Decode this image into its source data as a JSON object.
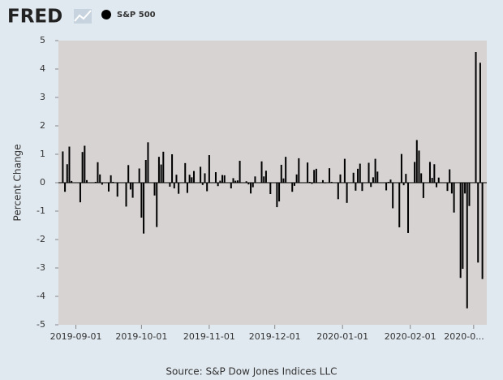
{
  "header": {
    "logo": "FRED"
  },
  "chart_data": {
    "type": "bar",
    "y_label": "Percent Change",
    "source": "Source: S&P Dow Jones Indices LLC",
    "xlim": [
      "2019-08-24",
      "2020-03-07"
    ],
    "xticks": [
      "2019-09-01",
      "2019-10-01",
      "2019-11-01",
      "2019-12-01",
      "2020-01-01",
      "2020-02-01",
      {
        "value": "2020-03-01",
        "label": "2020-0..."
      }
    ],
    "ylim": [
      -5,
      5
    ],
    "yticks": [
      -5,
      -4,
      -3,
      -2,
      -1,
      0,
      1,
      2,
      3,
      4,
      5
    ],
    "x": [
      "2019-08-26",
      "2019-08-27",
      "2019-08-28",
      "2019-08-29",
      "2019-08-30",
      "2019-09-03",
      "2019-09-04",
      "2019-09-05",
      "2019-09-06",
      "2019-09-09",
      "2019-09-10",
      "2019-09-11",
      "2019-09-12",
      "2019-09-13",
      "2019-09-16",
      "2019-09-17",
      "2019-09-18",
      "2019-09-19",
      "2019-09-20",
      "2019-09-23",
      "2019-09-24",
      "2019-09-25",
      "2019-09-26",
      "2019-09-27",
      "2019-09-30",
      "2019-10-01",
      "2019-10-02",
      "2019-10-03",
      "2019-10-04",
      "2019-10-07",
      "2019-10-08",
      "2019-10-09",
      "2019-10-10",
      "2019-10-11",
      "2019-10-14",
      "2019-10-15",
      "2019-10-16",
      "2019-10-17",
      "2019-10-18",
      "2019-10-21",
      "2019-10-22",
      "2019-10-23",
      "2019-10-24",
      "2019-10-25",
      "2019-10-28",
      "2019-10-29",
      "2019-10-30",
      "2019-10-31",
      "2019-11-01",
      "2019-11-04",
      "2019-11-05",
      "2019-11-06",
      "2019-11-07",
      "2019-11-08",
      "2019-11-11",
      "2019-11-12",
      "2019-11-13",
      "2019-11-14",
      "2019-11-15",
      "2019-11-18",
      "2019-11-19",
      "2019-11-20",
      "2019-11-21",
      "2019-11-22",
      "2019-11-25",
      "2019-11-26",
      "2019-11-27",
      "2019-11-29",
      "2019-12-02",
      "2019-12-03",
      "2019-12-04",
      "2019-12-05",
      "2019-12-06",
      "2019-12-09",
      "2019-12-10",
      "2019-12-11",
      "2019-12-12",
      "2019-12-13",
      "2019-12-16",
      "2019-12-17",
      "2019-12-18",
      "2019-12-19",
      "2019-12-20",
      "2019-12-23",
      "2019-12-24",
      "2019-12-26",
      "2019-12-27",
      "2019-12-30",
      "2019-12-31",
      "2020-01-02",
      "2020-01-03",
      "2020-01-06",
      "2020-01-07",
      "2020-01-08",
      "2020-01-09",
      "2020-01-10",
      "2020-01-13",
      "2020-01-14",
      "2020-01-15",
      "2020-01-16",
      "2020-01-17",
      "2020-01-21",
      "2020-01-22",
      "2020-01-23",
      "2020-01-24",
      "2020-01-27",
      "2020-01-28",
      "2020-01-29",
      "2020-01-30",
      "2020-01-31",
      "2020-02-03",
      "2020-02-04",
      "2020-02-05",
      "2020-02-06",
      "2020-02-07",
      "2020-02-10",
      "2020-02-11",
      "2020-02-12",
      "2020-02-13",
      "2020-02-14",
      "2020-02-18",
      "2020-02-19",
      "2020-02-20",
      "2020-02-21",
      "2020-02-24",
      "2020-02-25",
      "2020-02-26",
      "2020-02-27",
      "2020-02-28",
      "2020-03-02",
      "2020-03-03",
      "2020-03-04",
      "2020-03-05"
    ],
    "series": [
      {
        "name": "S&P 500",
        "color": "#000000",
        "values": [
          1.1,
          -0.32,
          0.65,
          1.27,
          0.06,
          -0.69,
          1.08,
          1.3,
          0.09,
          -0.01,
          0.03,
          0.72,
          0.29,
          -0.07,
          -0.31,
          0.26,
          0.03,
          0,
          -0.49,
          -0.01,
          -0.84,
          0.62,
          -0.24,
          -0.53,
          0.5,
          -1.23,
          -1.79,
          0.8,
          1.42,
          -0.45,
          -1.56,
          0.91,
          0.64,
          1.09,
          -0.14,
          1,
          -0.2,
          0.28,
          -0.39,
          0.69,
          -0.36,
          0.28,
          0.19,
          0.41,
          0.56,
          -0.08,
          0.33,
          -0.3,
          0.97,
          0.37,
          -0.12,
          0.07,
          0.27,
          0.26,
          -0.2,
          0.16,
          0.07,
          0.08,
          0.77,
          0.05,
          -0.06,
          -0.38,
          -0.16,
          0.22,
          0.75,
          0.22,
          0.42,
          -0.4,
          -0.86,
          -0.66,
          0.63,
          0.15,
          0.91,
          -0.32,
          -0.11,
          0.29,
          0.86,
          0.01,
          0.71,
          0.03,
          -0.04,
          0.45,
          0.49,
          0.09,
          -0.02,
          0.51,
          0.03,
          -0.58,
          0.29,
          0.84,
          -0.71,
          0.35,
          -0.28,
          0.49,
          0.67,
          -0.29,
          0.7,
          -0.15,
          0.19,
          0.84,
          0.39,
          -0.27,
          0.03,
          0.11,
          -0.9,
          -1.57,
          1.01,
          -0.09,
          0.31,
          -1.77,
          0.73,
          1.5,
          1.13,
          0.33,
          -0.54,
          0.73,
          0.17,
          0.65,
          -0.16,
          0.18,
          -0.29,
          0.47,
          -0.38,
          -1.05,
          -3.35,
          -3.03,
          -0.38,
          -4.42,
          -0.82,
          4.6,
          -2.81,
          4.22,
          -3.39
        ]
      }
    ]
  }
}
